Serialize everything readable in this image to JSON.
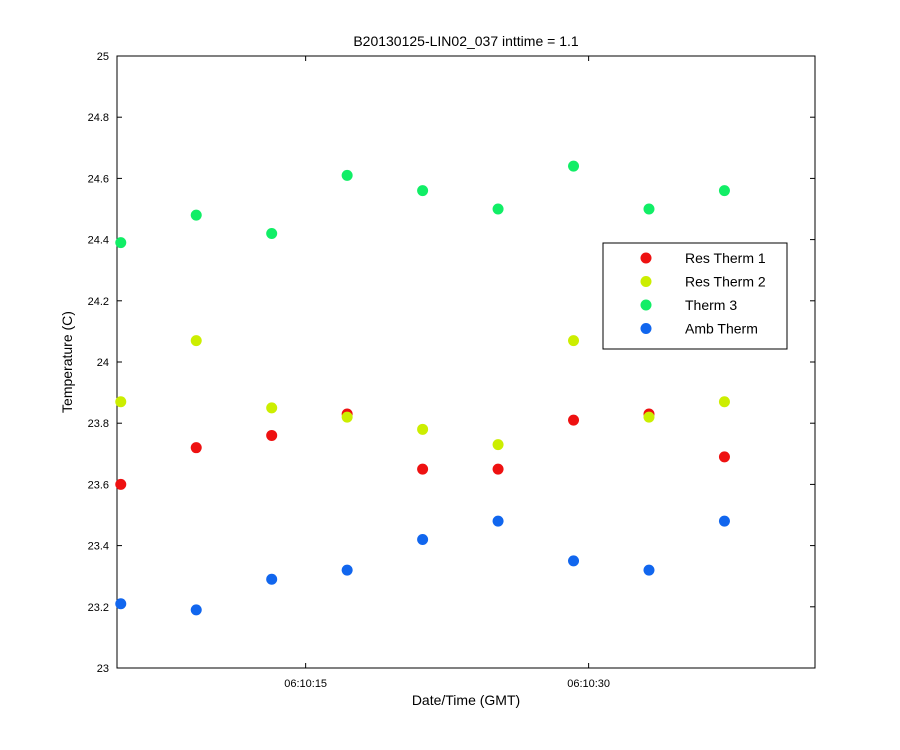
{
  "chart_data": {
    "type": "scatter",
    "title": "B20130125-LIN02_037 inttime = 1.1",
    "xlabel": "Date/Time (GMT)",
    "ylabel": "Temperature (C)",
    "x_unit": "seconds after 06:10:00 GMT",
    "x_range": [
      5,
      42
    ],
    "x_ticks": [
      15,
      30
    ],
    "x_tick_labels": [
      "06:10:15",
      "06:10:30"
    ],
    "ylim": [
      23,
      25
    ],
    "y_ticks": [
      23,
      23.2,
      23.4,
      23.6,
      23.8,
      24,
      24.2,
      24.4,
      24.6,
      24.8,
      25
    ],
    "y_tick_labels": [
      "23",
      "23.2",
      "23.4",
      "23.6",
      "23.8",
      "24",
      "24.2",
      "24.4",
      "24.6",
      "24.8",
      "25"
    ],
    "grid": false,
    "legend_position": "right",
    "x": [
      5.2,
      9.2,
      13.2,
      17.2,
      21.2,
      25.2,
      29.2,
      33.2,
      37.2
    ],
    "series": [
      {
        "name": "Res Therm 1",
        "color": "#ee1111",
        "values": [
          23.6,
          23.72,
          23.76,
          23.83,
          23.65,
          23.65,
          23.81,
          23.83,
          23.69
        ]
      },
      {
        "name": "Res Therm 2",
        "color": "#ccee00",
        "values": [
          23.87,
          24.07,
          23.85,
          23.82,
          23.78,
          23.73,
          24.07,
          23.82,
          23.87
        ]
      },
      {
        "name": "Therm 3",
        "color": "#11ee66",
        "values": [
          24.39,
          24.48,
          24.42,
          24.61,
          24.56,
          24.5,
          24.64,
          24.5,
          24.56
        ]
      },
      {
        "name": "Amb Therm",
        "color": "#1166ee",
        "values": [
          23.21,
          23.19,
          23.29,
          23.32,
          23.42,
          23.48,
          23.35,
          23.32,
          23.48
        ]
      }
    ]
  }
}
